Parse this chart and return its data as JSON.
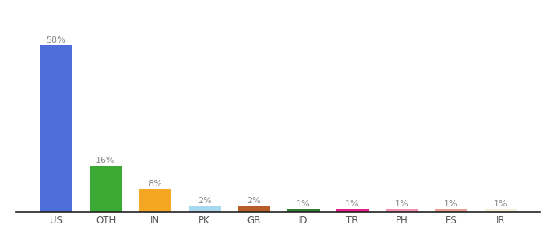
{
  "categories": [
    "US",
    "OTH",
    "IN",
    "PK",
    "GB",
    "ID",
    "TR",
    "PH",
    "ES",
    "IR"
  ],
  "values": [
    58,
    16,
    8,
    2,
    2,
    1,
    1,
    1,
    1,
    1
  ],
  "labels": [
    "58%",
    "16%",
    "8%",
    "2%",
    "2%",
    "1%",
    "1%",
    "1%",
    "1%",
    "1%"
  ],
  "bar_colors": [
    "#4e6fda",
    "#3aaa35",
    "#f5a623",
    "#a8d8f0",
    "#b85c2a",
    "#2e7d32",
    "#e91e8c",
    "#f48fb1",
    "#e8a090",
    "#f5f0d8"
  ],
  "bar_label_fontsize": 8,
  "xlabel_fontsize": 8.5,
  "ylim": [
    0,
    67
  ],
  "background_color": "#ffffff",
  "label_color": "#888888",
  "tick_color": "#555555"
}
